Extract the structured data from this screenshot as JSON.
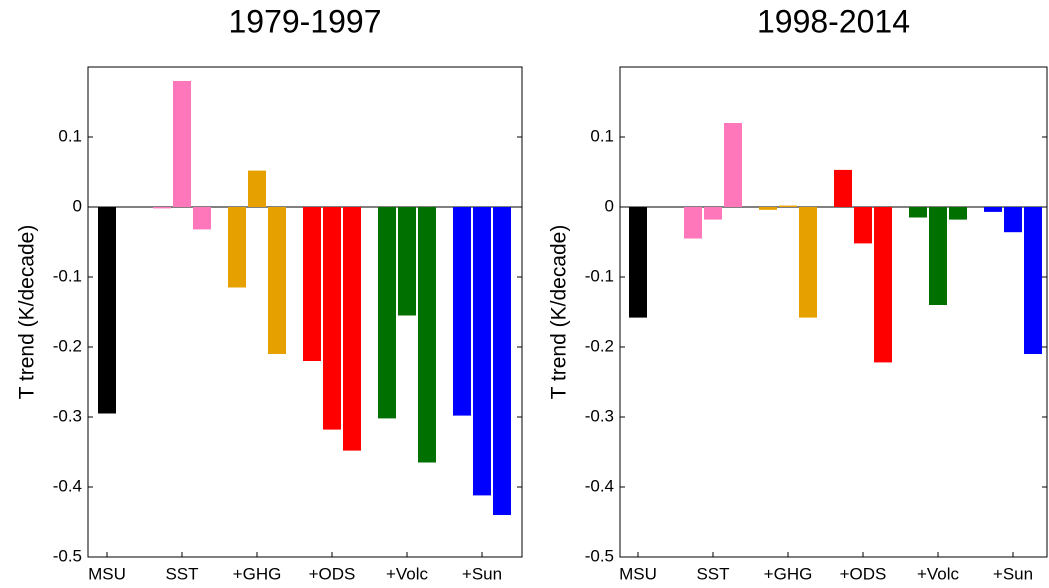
{
  "chart_data": [
    {
      "type": "bar",
      "title": "1979-1997",
      "ylabel": "T trend (K/decade)",
      "ylim": [
        -0.5,
        0.2
      ],
      "yticks": [
        -0.5,
        -0.4,
        -0.3,
        -0.2,
        -0.1,
        0,
        0.1
      ],
      "groups": [
        {
          "label": "MSU",
          "color": "#000000",
          "values": [
            -0.295
          ]
        },
        {
          "label": "SST",
          "color": "#ff77bb",
          "values": [
            -0.002,
            0.18,
            -0.032
          ]
        },
        {
          "label": "+GHG",
          "color": "#e6a000",
          "values": [
            -0.115,
            0.052,
            -0.21
          ]
        },
        {
          "label": "+ODS",
          "color": "#ff0000",
          "values": [
            -0.22,
            -0.318,
            -0.348
          ]
        },
        {
          "label": "+Volc",
          "color": "#007000",
          "values": [
            -0.302,
            -0.155,
            -0.365
          ]
        },
        {
          "label": "+Sun",
          "color": "#0000ff",
          "values": [
            -0.298,
            -0.412,
            -0.44
          ]
        }
      ]
    },
    {
      "type": "bar",
      "title": "1998-2014",
      "ylabel": "T trend (K/decade)",
      "ylim": [
        -0.5,
        0.2
      ],
      "yticks": [
        -0.5,
        -0.4,
        -0.3,
        -0.2,
        -0.1,
        0,
        0.1
      ],
      "groups": [
        {
          "label": "MSU",
          "color": "#000000",
          "values": [
            -0.158
          ]
        },
        {
          "label": "SST",
          "color": "#ff77bb",
          "values": [
            -0.045,
            -0.018,
            0.12
          ]
        },
        {
          "label": "+GHG",
          "color": "#e6a000",
          "values": [
            -0.004,
            0.002,
            -0.158
          ]
        },
        {
          "label": "+ODS",
          "color": "#ff0000",
          "values": [
            0.053,
            -0.052,
            -0.222
          ]
        },
        {
          "label": "+Volc",
          "color": "#007000",
          "values": [
            -0.015,
            -0.14,
            -0.018
          ]
        },
        {
          "label": "+Sun",
          "color": "#0000ff",
          "values": [
            -0.007,
            -0.036,
            -0.21
          ]
        }
      ]
    }
  ]
}
